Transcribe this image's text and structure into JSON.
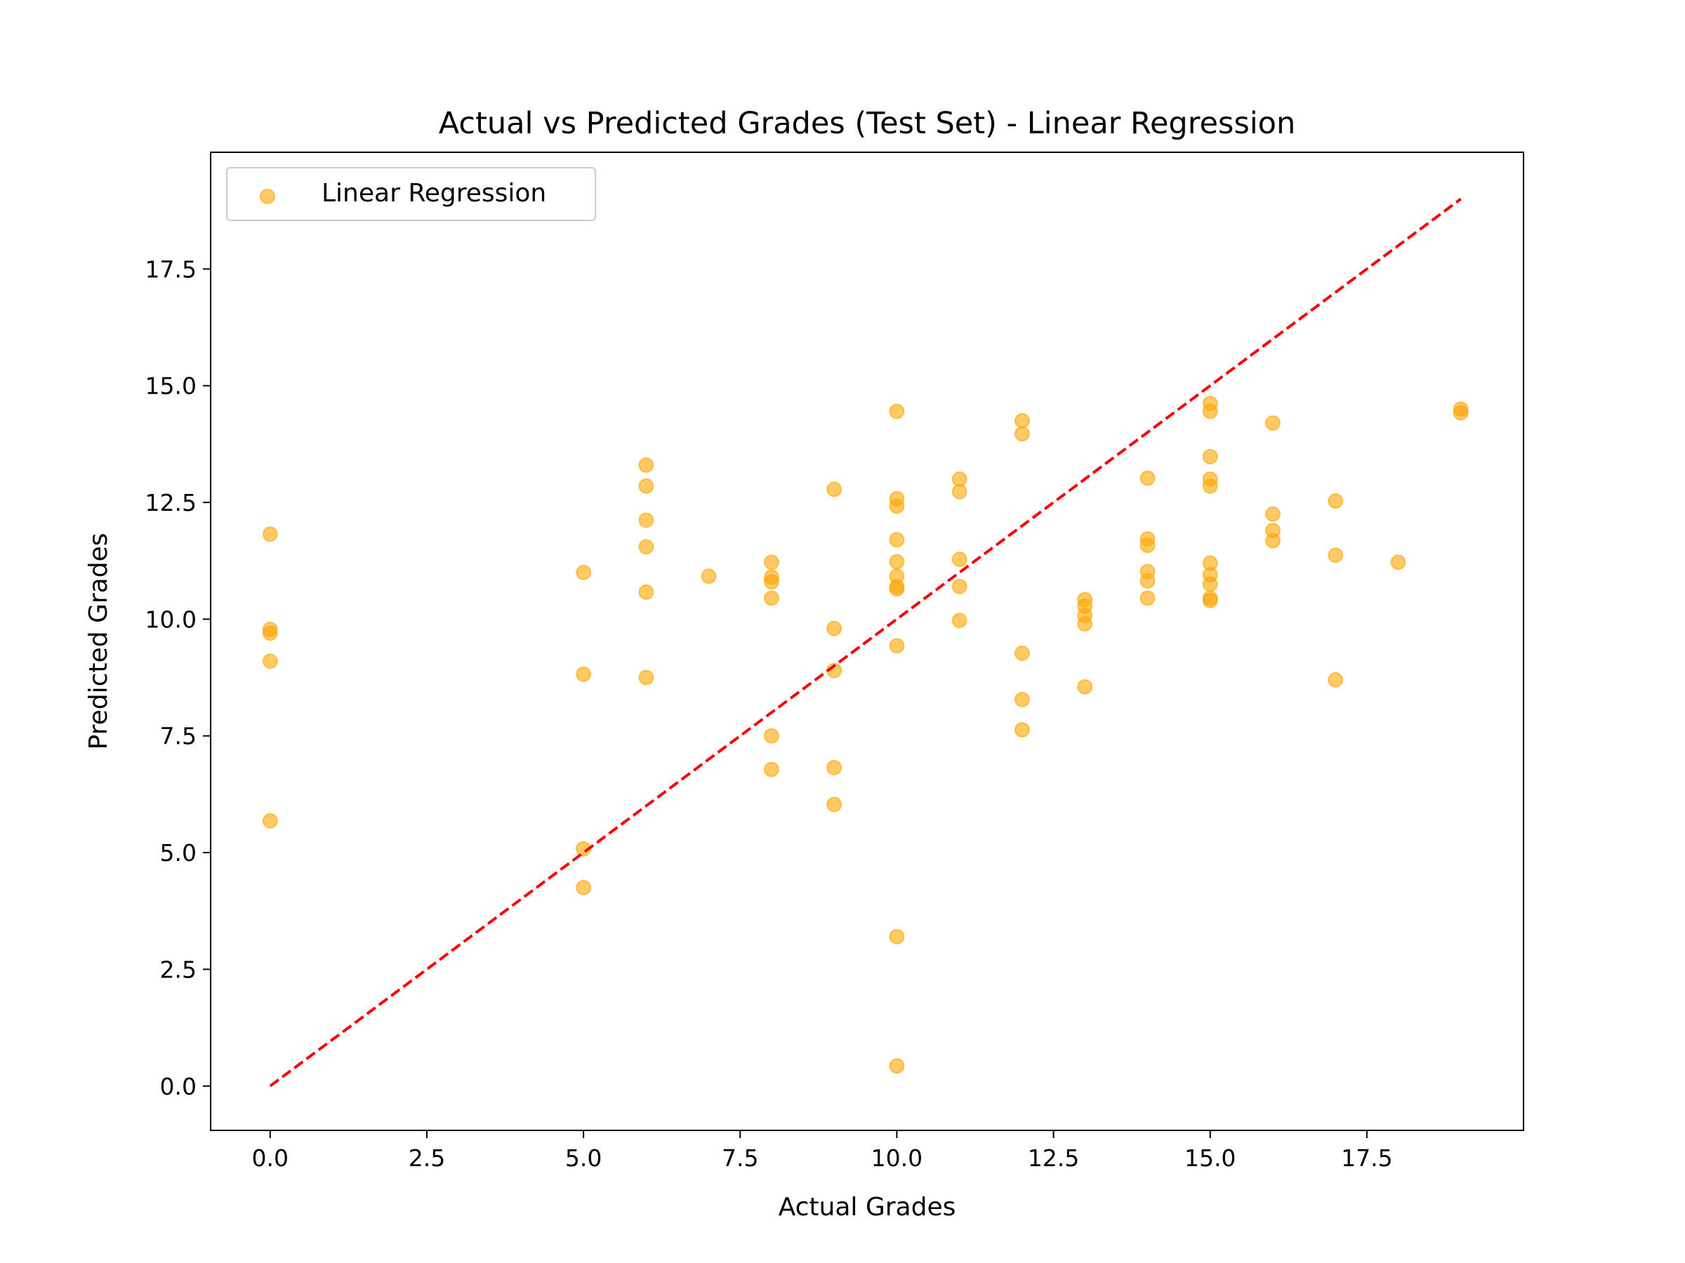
{
  "chart_data": {
    "type": "scatter",
    "title": "Actual vs Predicted Grades (Test Set) - Linear Regression",
    "xlabel": "Actual Grades",
    "ylabel": "Predicted Grades",
    "xlim": [
      -0.95,
      20.0
    ],
    "ylim": [
      -0.95,
      20.0
    ],
    "xticks": [
      0.0,
      2.5,
      5.0,
      7.5,
      10.0,
      12.5,
      15.0,
      17.5
    ],
    "yticks": [
      0.0,
      2.5,
      5.0,
      7.5,
      10.0,
      12.5,
      15.0,
      17.5
    ],
    "xtick_labels": [
      "0.0",
      "2.5",
      "5.0",
      "7.5",
      "10.0",
      "12.5",
      "15.0",
      "17.5"
    ],
    "ytick_labels": [
      "0.0",
      "2.5",
      "5.0",
      "7.5",
      "10.0",
      "12.5",
      "15.0",
      "17.5"
    ],
    "grid": false,
    "legend": {
      "position": "top-left",
      "entries": [
        "Linear Regression"
      ]
    },
    "series": [
      {
        "name": "Linear Regression",
        "color": "#FFA500",
        "opacity": 0.6,
        "points": [
          [
            0,
            11.82
          ],
          [
            0,
            9.78
          ],
          [
            0,
            9.7
          ],
          [
            0,
            9.1
          ],
          [
            0,
            5.68
          ],
          [
            5,
            11.0
          ],
          [
            5,
            8.82
          ],
          [
            5,
            5.08
          ],
          [
            5,
            4.25
          ],
          [
            6,
            13.3
          ],
          [
            6,
            12.85
          ],
          [
            6,
            12.12
          ],
          [
            6,
            11.55
          ],
          [
            6,
            10.58
          ],
          [
            6,
            8.75
          ],
          [
            7,
            10.92
          ],
          [
            8,
            11.22
          ],
          [
            8,
            10.9
          ],
          [
            8,
            10.8
          ],
          [
            8,
            10.45
          ],
          [
            8,
            7.5
          ],
          [
            8,
            6.78
          ],
          [
            9,
            12.78
          ],
          [
            9,
            9.8
          ],
          [
            9,
            8.9
          ],
          [
            9,
            6.82
          ],
          [
            9,
            6.03
          ],
          [
            10,
            14.45
          ],
          [
            10,
            12.58
          ],
          [
            10,
            12.42
          ],
          [
            10,
            11.7
          ],
          [
            10,
            11.23
          ],
          [
            10,
            10.92
          ],
          [
            10,
            10.7
          ],
          [
            10,
            10.65
          ],
          [
            10,
            9.43
          ],
          [
            10,
            3.2
          ],
          [
            10,
            0.43
          ],
          [
            11,
            13.0
          ],
          [
            11,
            12.73
          ],
          [
            11,
            11.28
          ],
          [
            11,
            10.7
          ],
          [
            11,
            9.97
          ],
          [
            12,
            14.25
          ],
          [
            12,
            13.97
          ],
          [
            12,
            9.27
          ],
          [
            12,
            8.28
          ],
          [
            12,
            7.63
          ],
          [
            13,
            10.42
          ],
          [
            13,
            10.28
          ],
          [
            13,
            10.08
          ],
          [
            13,
            9.9
          ],
          [
            13,
            8.55
          ],
          [
            14,
            13.02
          ],
          [
            14,
            11.72
          ],
          [
            14,
            11.58
          ],
          [
            14,
            11.02
          ],
          [
            14,
            10.82
          ],
          [
            14,
            10.45
          ],
          [
            15,
            14.62
          ],
          [
            15,
            14.45
          ],
          [
            15,
            13.48
          ],
          [
            15,
            13.0
          ],
          [
            15,
            12.85
          ],
          [
            15,
            11.2
          ],
          [
            15,
            10.95
          ],
          [
            15,
            10.75
          ],
          [
            15,
            10.45
          ],
          [
            15,
            10.4
          ],
          [
            16,
            14.2
          ],
          [
            16,
            12.25
          ],
          [
            16,
            11.9
          ],
          [
            16,
            11.68
          ],
          [
            17,
            12.53
          ],
          [
            17,
            11.37
          ],
          [
            17,
            8.7
          ],
          [
            18,
            11.22
          ],
          [
            19,
            14.5
          ],
          [
            19,
            14.42
          ]
        ]
      },
      {
        "name": "",
        "type": "line",
        "style": "dashed",
        "color": "#FF0000",
        "points": [
          [
            0,
            0
          ],
          [
            19,
            19
          ]
        ]
      }
    ]
  }
}
